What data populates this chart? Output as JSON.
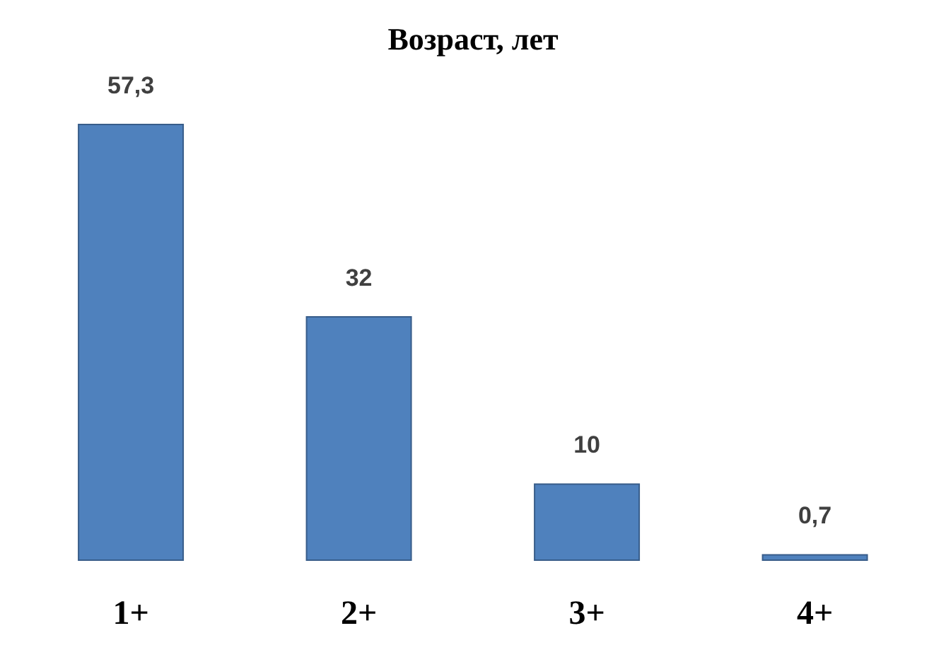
{
  "chart_data": {
    "type": "bar",
    "title": "Возраст, лет",
    "categories": [
      "1+",
      "2+",
      "3+",
      "4+"
    ],
    "values": [
      57.3,
      32,
      10,
      0.7
    ],
    "value_labels": [
      "57,3",
      "32",
      "10",
      "0,7"
    ],
    "color": "#4f81bd",
    "grid": false,
    "legend": false
  }
}
